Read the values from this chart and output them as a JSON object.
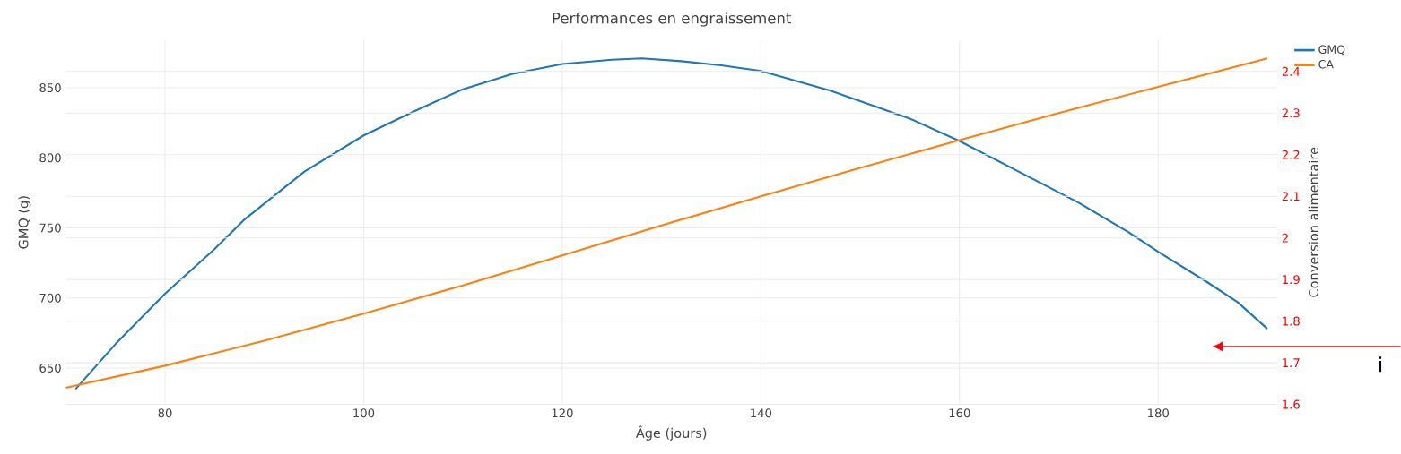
{
  "chart_data": {
    "type": "line",
    "title": "Performances en engraissement",
    "xlabel": "Âge (jours)",
    "ylabel": "GMQ (g)",
    "y2label": "Conversion alimentaire",
    "series": [
      {
        "name": "GMQ",
        "color": "#1f77b4",
        "x": [
          71,
          75,
          80,
          85,
          88,
          94,
          100,
          105,
          110,
          115,
          120,
          125,
          128,
          132,
          136,
          140,
          147,
          155,
          160,
          166,
          172,
          177,
          180,
          185,
          188,
          191
        ],
        "values": [
          635,
          667,
          703,
          735,
          756,
          790,
          816,
          833,
          849,
          860,
          867,
          870,
          871,
          869,
          866,
          862,
          848,
          828,
          812,
          790,
          768,
          747,
          733,
          711,
          697,
          678
        ]
      },
      {
        "name": "CA",
        "color": "#ff7f0e",
        "axis": "y2",
        "x": [
          70,
          80,
          90,
          100,
          110,
          120,
          130,
          140,
          150,
          160,
          170,
          180,
          191
        ],
        "values": [
          1.64,
          1.693,
          1.753,
          1.818,
          1.886,
          1.958,
          2.03,
          2.1,
          2.168,
          2.235,
          2.3,
          2.363,
          2.431
        ]
      }
    ],
    "xlim": [
      70,
      192
    ],
    "xticks": [
      80,
      100,
      120,
      140,
      160,
      180
    ],
    "ylim": [
      624,
      884
    ],
    "yticks": [
      650,
      700,
      750,
      800,
      850
    ],
    "y2lim": [
      1.6,
      2.475
    ],
    "y2ticks": [
      1.6,
      1.7,
      1.8,
      1.9,
      2,
      2.1,
      2.2,
      2.3,
      2.4
    ],
    "grid": true,
    "legend": "top right",
    "annotations": [
      "i"
    ]
  }
}
